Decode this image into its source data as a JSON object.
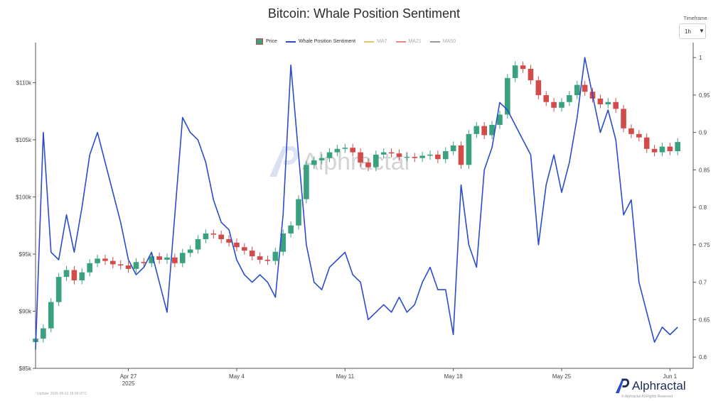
{
  "title": "Bitcoin: Whale Position Sentiment",
  "timeframe": {
    "label": "Timeframe",
    "value": "1h"
  },
  "legend": [
    {
      "name": "Price",
      "color": "#3aa17e",
      "style": "candle"
    },
    {
      "name": "Whale Position Sentiment",
      "color": "#2b4cc8",
      "style": "line"
    },
    {
      "name": "MA7",
      "color": "#e6c46a",
      "style": "line"
    },
    {
      "name": "MA21",
      "color": "#e58a8a",
      "style": "line"
    },
    {
      "name": "MA50",
      "color": "#9a9a9a",
      "style": "line"
    }
  ],
  "brand": {
    "name": "Alphractal",
    "icon": "alphractal-logo-icon"
  },
  "updated_text": "Update: 2025-06-01 15:00 UTC",
  "copyright_text": "© Alphractal All Rights Reserved",
  "chart_data": {
    "type": "line",
    "title": "Bitcoin: Whale Position Sentiment",
    "x_ticks": [
      {
        "date": "2025-04-27",
        "label": "Apr 27",
        "sublabel": "2025"
      },
      {
        "date": "2025-05-04",
        "label": "May 4"
      },
      {
        "date": "2025-05-11",
        "label": "May 11"
      },
      {
        "date": "2025-05-18",
        "label": "May 18"
      },
      {
        "date": "2025-05-25",
        "label": "May 25"
      },
      {
        "date": "2025-06-01",
        "label": "Jun 1"
      }
    ],
    "xlim": [
      "2025-04-21T00:00",
      "2025-06-02T12:00"
    ],
    "y_left": {
      "ticks": [
        85000,
        90000,
        95000,
        100000,
        105000,
        110000
      ],
      "tick_labels": [
        "$85k",
        "$90k",
        "$95k",
        "$100k",
        "$105k",
        "$110k"
      ],
      "lim": [
        85000,
        113500
      ]
    },
    "y_right": {
      "ticks": [
        0.6,
        0.65,
        0.7,
        0.75,
        0.8,
        0.85,
        0.9,
        0.95,
        1
      ],
      "tick_labels": [
        "0.6",
        "0.65",
        "0.7",
        "0.75",
        "0.8",
        "0.85",
        "0.9",
        "0.95",
        "1"
      ],
      "lim": [
        0.585,
        1.02
      ]
    },
    "grid": false,
    "legend_position": "top-center",
    "series": [
      {
        "name": "Price",
        "axis": "left",
        "color_up": "#3aa17e",
        "color_down": "#d24b4b",
        "x": [
          "2025-04-21",
          "2025-04-21T12:00",
          "2025-04-22",
          "2025-04-22T12:00",
          "2025-04-23",
          "2025-04-23T12:00",
          "2025-04-24",
          "2025-04-24T12:00",
          "2025-04-25",
          "2025-04-25T12:00",
          "2025-04-26",
          "2025-04-26T12:00",
          "2025-04-27",
          "2025-04-27T12:00",
          "2025-04-28",
          "2025-04-28T12:00",
          "2025-04-29",
          "2025-04-29T12:00",
          "2025-04-30",
          "2025-04-30T12:00",
          "2025-05-01",
          "2025-05-01T12:00",
          "2025-05-02",
          "2025-05-02T12:00",
          "2025-05-03",
          "2025-05-03T12:00",
          "2025-05-04",
          "2025-05-04T12:00",
          "2025-05-05",
          "2025-05-05T12:00",
          "2025-05-06",
          "2025-05-06T12:00",
          "2025-05-07",
          "2025-05-07T12:00",
          "2025-05-08",
          "2025-05-08T12:00",
          "2025-05-09",
          "2025-05-09T12:00",
          "2025-05-10",
          "2025-05-10T12:00",
          "2025-05-11",
          "2025-05-11T12:00",
          "2025-05-12",
          "2025-05-12T12:00",
          "2025-05-13",
          "2025-05-13T12:00",
          "2025-05-14",
          "2025-05-14T12:00",
          "2025-05-15",
          "2025-05-15T12:00",
          "2025-05-16",
          "2025-05-16T12:00",
          "2025-05-17",
          "2025-05-17T12:00",
          "2025-05-18",
          "2025-05-18T12:00",
          "2025-05-19",
          "2025-05-19T12:00",
          "2025-05-20",
          "2025-05-20T12:00",
          "2025-05-21",
          "2025-05-21T12:00",
          "2025-05-22",
          "2025-05-22T12:00",
          "2025-05-23",
          "2025-05-23T12:00",
          "2025-05-24",
          "2025-05-24T12:00",
          "2025-05-25",
          "2025-05-25T12:00",
          "2025-05-26",
          "2025-05-26T12:00",
          "2025-05-27",
          "2025-05-27T12:00",
          "2025-05-28",
          "2025-05-28T12:00",
          "2025-05-29",
          "2025-05-29T12:00",
          "2025-05-30",
          "2025-05-30T12:00",
          "2025-05-31",
          "2025-05-31T12:00",
          "2025-06-01",
          "2025-06-01T12:00"
        ],
        "y": [
          87600,
          88500,
          90800,
          93000,
          93600,
          92700,
          93400,
          94200,
          94600,
          94400,
          94100,
          94000,
          93700,
          94300,
          94200,
          94800,
          94500,
          94700,
          94200,
          95100,
          95400,
          96300,
          96800,
          96700,
          96300,
          96000,
          95600,
          95300,
          94800,
          94500,
          94400,
          95200,
          96800,
          97500,
          99800,
          102800,
          103200,
          103400,
          103900,
          104200,
          104300,
          103900,
          103000,
          102600,
          103700,
          103900,
          103800,
          103500,
          103500,
          103400,
          103600,
          103700,
          103300,
          104000,
          104500,
          102800,
          105500,
          106200,
          105400,
          106300,
          107200,
          110400,
          111500,
          111200,
          110200,
          108900,
          108300,
          107800,
          108300,
          108900,
          109800,
          109200,
          108600,
          108100,
          108300,
          107700,
          106000,
          105500,
          105200,
          104200,
          103900,
          104400,
          104000,
          104800
        ]
      },
      {
        "name": "Whale Position Sentiment",
        "axis": "right",
        "color": "#2b4cc8",
        "x": [
          "2025-04-21",
          "2025-04-21T12:00",
          "2025-04-22",
          "2025-04-22T12:00",
          "2025-04-23",
          "2025-04-23T12:00",
          "2025-04-24",
          "2025-04-24T12:00",
          "2025-04-25",
          "2025-04-25T12:00",
          "2025-04-26",
          "2025-04-26T12:00",
          "2025-04-27",
          "2025-04-27T12:00",
          "2025-04-28",
          "2025-04-28T12:00",
          "2025-04-29",
          "2025-04-29T12:00",
          "2025-04-30",
          "2025-04-30T12:00",
          "2025-05-01",
          "2025-05-01T12:00",
          "2025-05-02",
          "2025-05-02T12:00",
          "2025-05-03",
          "2025-05-03T12:00",
          "2025-05-04",
          "2025-05-04T12:00",
          "2025-05-05",
          "2025-05-05T12:00",
          "2025-05-06",
          "2025-05-06T12:00",
          "2025-05-07",
          "2025-05-07T12:00",
          "2025-05-08",
          "2025-05-08T12:00",
          "2025-05-09",
          "2025-05-09T12:00",
          "2025-05-10",
          "2025-05-10T12:00",
          "2025-05-11",
          "2025-05-11T12:00",
          "2025-05-12",
          "2025-05-12T12:00",
          "2025-05-13",
          "2025-05-13T12:00",
          "2025-05-14",
          "2025-05-14T12:00",
          "2025-05-15",
          "2025-05-15T12:00",
          "2025-05-16",
          "2025-05-16T12:00",
          "2025-05-17",
          "2025-05-17T12:00",
          "2025-05-18",
          "2025-05-18T12:00",
          "2025-05-19",
          "2025-05-19T12:00",
          "2025-05-20",
          "2025-05-20T12:00",
          "2025-05-21",
          "2025-05-21T12:00",
          "2025-05-22",
          "2025-05-22T12:00",
          "2025-05-23",
          "2025-05-23T12:00",
          "2025-05-24",
          "2025-05-24T12:00",
          "2025-05-25",
          "2025-05-25T12:00",
          "2025-05-26",
          "2025-05-26T12:00",
          "2025-05-27",
          "2025-05-27T12:00",
          "2025-05-28",
          "2025-05-28T12:00",
          "2025-05-29",
          "2025-05-29T12:00",
          "2025-05-30",
          "2025-05-30T12:00",
          "2025-05-31",
          "2025-05-31T12:00",
          "2025-06-01",
          "2025-06-01T12:00"
        ],
        "y": [
          0.61,
          0.9,
          0.74,
          0.73,
          0.79,
          0.74,
          0.8,
          0.87,
          0.9,
          0.86,
          0.82,
          0.78,
          0.73,
          0.71,
          0.72,
          0.74,
          0.7,
          0.66,
          0.79,
          0.92,
          0.9,
          0.89,
          0.86,
          0.81,
          0.78,
          0.77,
          0.73,
          0.71,
          0.7,
          0.71,
          0.7,
          0.68,
          0.79,
          0.99,
          0.87,
          0.75,
          0.7,
          0.69,
          0.72,
          0.73,
          0.74,
          0.71,
          0.7,
          0.65,
          0.66,
          0.67,
          0.66,
          0.68,
          0.66,
          0.67,
          0.7,
          0.72,
          0.69,
          0.69,
          0.63,
          0.83,
          0.75,
          0.72,
          0.85,
          0.88,
          0.94,
          0.93,
          0.91,
          0.89,
          0.87,
          0.75,
          0.83,
          0.87,
          0.82,
          0.86,
          0.92,
          1.0,
          0.95,
          0.9,
          0.93,
          0.89,
          0.79,
          0.81,
          0.7,
          0.66,
          0.62,
          0.64,
          0.63,
          0.64
        ]
      }
    ]
  }
}
